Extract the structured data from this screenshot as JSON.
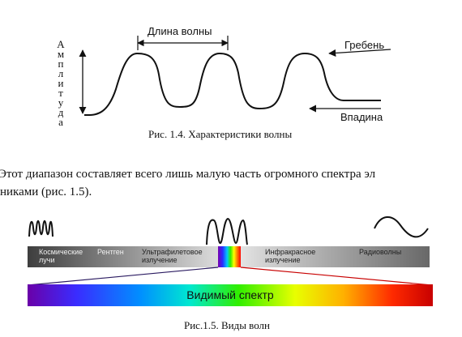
{
  "figure1": {
    "axis_label_letters": [
      "А",
      "м",
      "п",
      "л",
      "и",
      "т",
      "у",
      "д",
      "а"
    ],
    "wavelength_label": "Длина волны",
    "crest_label": "Гребень",
    "trough_label": "Впадина",
    "caption": "Рис. 1.4. Характеристики волны"
  },
  "paragraph": {
    "line1": "Этот диапазон составляет всего лишь малую часть огромного спектра эл",
    "line2": "никами (рис. 1.5)."
  },
  "figure2": {
    "bands": [
      {
        "line1": "Космические",
        "line2": "лучи"
      },
      {
        "line1": "Рентген",
        "line2": ""
      },
      {
        "line1": "Ультрафилетовое",
        "line2": "излучение"
      },
      {
        "line1": "Инфракрасное",
        "line2": "излучение"
      },
      {
        "line1": "Радиоволны",
        "line2": ""
      }
    ],
    "visible_spectrum_label": "Видимый спектр",
    "caption": "Рис.1.5. Виды волн"
  },
  "colors": {
    "band_dark": "#4a4a4a",
    "band_light": "#d6d6d6",
    "ink": "#111111",
    "spectrum": [
      "#7a00b0",
      "#3a2cff",
      "#0090ff",
      "#00e0c0",
      "#30ee00",
      "#ffff00",
      "#ff8800",
      "#ff0000",
      "#c80000"
    ]
  }
}
